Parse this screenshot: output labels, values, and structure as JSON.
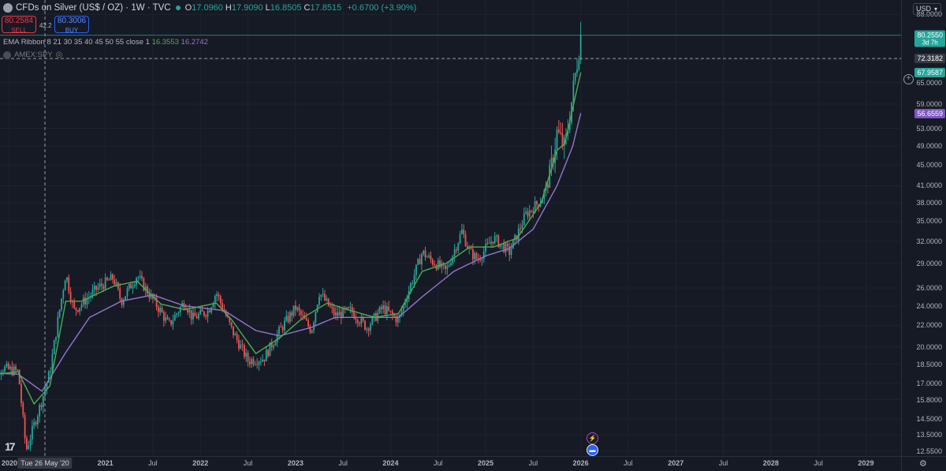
{
  "header": {
    "title": "CFDs on Silver (US$ / OZ) · 1W · TVC",
    "ohlc": [
      {
        "label": "O",
        "value": "17.0960"
      },
      {
        "label": "H",
        "value": "17.9090"
      },
      {
        "label": "L",
        "value": "16.8505"
      },
      {
        "label": "C",
        "value": "17.8515"
      }
    ],
    "change": "+0.6700 (+3.90%)"
  },
  "trade": {
    "sell_price": "80.2584",
    "sell_label": "SELL",
    "spread": "42.2",
    "buy_price": "80.3006",
    "buy_label": "BUY"
  },
  "indicator": {
    "name": "EMA Ribbon 8 21 30 35 40 45 50 55 close 1",
    "value1": "16.3553",
    "value2": "16.2742",
    "color1": "#4caf50",
    "color2": "#9575cd"
  },
  "compare": {
    "symbol": "AMEX:SPY"
  },
  "currency": "USD",
  "price_axis": {
    "ticks": [
      "88.0000",
      "80.0000",
      "72.0000",
      "65.0000",
      "59.0000",
      "53.0000",
      "49.0000",
      "45.0000",
      "41.0000",
      "38.0000",
      "35.0000",
      "32.0000",
      "29.0000",
      "26.0000",
      "24.0000",
      "22.0000",
      "20.0000",
      "18.5000",
      "17.0000",
      "15.8000",
      "14.5000",
      "13.5000",
      "12.5500"
    ],
    "labels": [
      {
        "value": "80.2550",
        "sub": "3d 7h",
        "color": "#26a69a"
      },
      {
        "value": "72.3182",
        "color": "#363a45"
      },
      {
        "value": "67.9587",
        "color": "#26a69a"
      },
      {
        "value": "56.6559",
        "color": "#7e57c2"
      }
    ]
  },
  "time_axis": {
    "labels": [
      "2020",
      "2021",
      "Jul",
      "2022",
      "Jul",
      "2023",
      "Jul",
      "2024",
      "Jul",
      "2025",
      "Jul",
      "2026",
      "Jul",
      "2027",
      "Jul",
      "2028",
      "Jul",
      "2029"
    ],
    "crosshair_date": "Tue 26 May '20"
  },
  "chart_data": {
    "type": "candlestick",
    "timeframe": "1W",
    "x_range": [
      "2019-10",
      "2029-06"
    ],
    "y_scale": "log",
    "y_range": [
      12.55,
      90
    ],
    "last_price": 80.255,
    "crosshair_price": 72.3182,
    "series": [
      {
        "name": "EMA 8",
        "color": "#4caf50"
      },
      {
        "name": "EMA 55",
        "color": "#9575cd"
      }
    ],
    "close_path": [
      [
        "2019-10",
        17.7
      ],
      [
        "2019-12",
        18.2
      ],
      [
        "2020-02",
        17.9
      ],
      [
        "2020-03",
        12.6
      ],
      [
        "2020-05",
        15.8
      ],
      [
        "2020-06",
        17.9
      ],
      [
        "2020-07",
        22.5
      ],
      [
        "2020-08",
        27.8
      ],
      [
        "2020-09",
        23.5
      ],
      [
        "2020-10",
        24.2
      ],
      [
        "2020-12",
        26.0
      ],
      [
        "2021-02",
        27.2
      ],
      [
        "2021-03",
        24.5
      ],
      [
        "2021-05",
        27.5
      ],
      [
        "2021-06",
        26.0
      ],
      [
        "2021-08",
        23.4
      ],
      [
        "2021-09",
        22.0
      ],
      [
        "2021-11",
        24.5
      ],
      [
        "2021-12",
        22.7
      ],
      [
        "2022-02",
        23.5
      ],
      [
        "2022-03",
        25.5
      ],
      [
        "2022-05",
        21.5
      ],
      [
        "2022-07",
        18.8
      ],
      [
        "2022-09",
        19.0
      ],
      [
        "2022-11",
        21.5
      ],
      [
        "2023-01",
        23.8
      ],
      [
        "2023-03",
        21.5
      ],
      [
        "2023-04",
        25.5
      ],
      [
        "2023-06",
        23.0
      ],
      [
        "2023-08",
        23.5
      ],
      [
        "2023-10",
        21.8
      ],
      [
        "2023-12",
        23.8
      ],
      [
        "2024-02",
        22.5
      ],
      [
        "2024-03",
        25.0
      ],
      [
        "2024-05",
        30.5
      ],
      [
        "2024-06",
        29.5
      ],
      [
        "2024-08",
        28.0
      ],
      [
        "2024-10",
        33.5
      ],
      [
        "2024-11",
        30.5
      ],
      [
        "2024-12",
        29.5
      ],
      [
        "2025-02",
        32.5
      ],
      [
        "2025-04",
        30.5
      ],
      [
        "2025-05",
        33.0
      ],
      [
        "2025-06",
        36.0
      ],
      [
        "2025-08",
        38.5
      ],
      [
        "2025-09",
        42.0
      ],
      [
        "2025-10",
        52.0
      ],
      [
        "2025-11",
        48.5
      ],
      [
        "2025-12",
        62.0
      ],
      [
        "2026-01",
        80.25
      ]
    ],
    "ema_fast_path": [
      [
        "2019-10",
        17.6
      ],
      [
        "2020-02",
        17.9
      ],
      [
        "2020-04",
        15.5
      ],
      [
        "2020-06",
        16.8
      ],
      [
        "2020-08",
        24.5
      ],
      [
        "2020-10",
        24.5
      ],
      [
        "2021-02",
        26.2
      ],
      [
        "2021-05",
        26.8
      ],
      [
        "2021-08",
        24.2
      ],
      [
        "2021-11",
        23.6
      ],
      [
        "2022-03",
        24.3
      ],
      [
        "2022-05",
        22.5
      ],
      [
        "2022-08",
        19.4
      ],
      [
        "2022-11",
        20.8
      ],
      [
        "2023-02",
        22.8
      ],
      [
        "2023-05",
        24.3
      ],
      [
        "2023-08",
        23.5
      ],
      [
        "2023-11",
        22.8
      ],
      [
        "2024-02",
        23.2
      ],
      [
        "2024-05",
        28.0
      ],
      [
        "2024-08",
        29.0
      ],
      [
        "2024-11",
        31.2
      ],
      [
        "2025-02",
        31.2
      ],
      [
        "2025-05",
        32.5
      ],
      [
        "2025-08",
        38.0
      ],
      [
        "2025-10",
        48.0
      ],
      [
        "2025-11",
        49.5
      ],
      [
        "2026-01",
        67.96
      ]
    ],
    "ema_slow_path": [
      [
        "2019-10",
        17.8
      ],
      [
        "2020-02",
        17.7
      ],
      [
        "2020-05",
        16.4
      ],
      [
        "2020-08",
        19.5
      ],
      [
        "2020-11",
        22.8
      ],
      [
        "2021-03",
        24.5
      ],
      [
        "2021-07",
        25.2
      ],
      [
        "2021-11",
        24.0
      ],
      [
        "2022-04",
        23.5
      ],
      [
        "2022-08",
        21.5
      ],
      [
        "2022-11",
        21.0
      ],
      [
        "2023-03",
        21.8
      ],
      [
        "2023-06",
        22.8
      ],
      [
        "2023-10",
        22.8
      ],
      [
        "2024-02",
        22.8
      ],
      [
        "2024-05",
        25.0
      ],
      [
        "2024-09",
        28.0
      ],
      [
        "2025-01",
        30.0
      ],
      [
        "2025-04",
        31.0
      ],
      [
        "2025-07",
        33.8
      ],
      [
        "2025-10",
        41.0
      ],
      [
        "2025-12",
        49.0
      ],
      [
        "2026-01",
        56.66
      ]
    ]
  }
}
